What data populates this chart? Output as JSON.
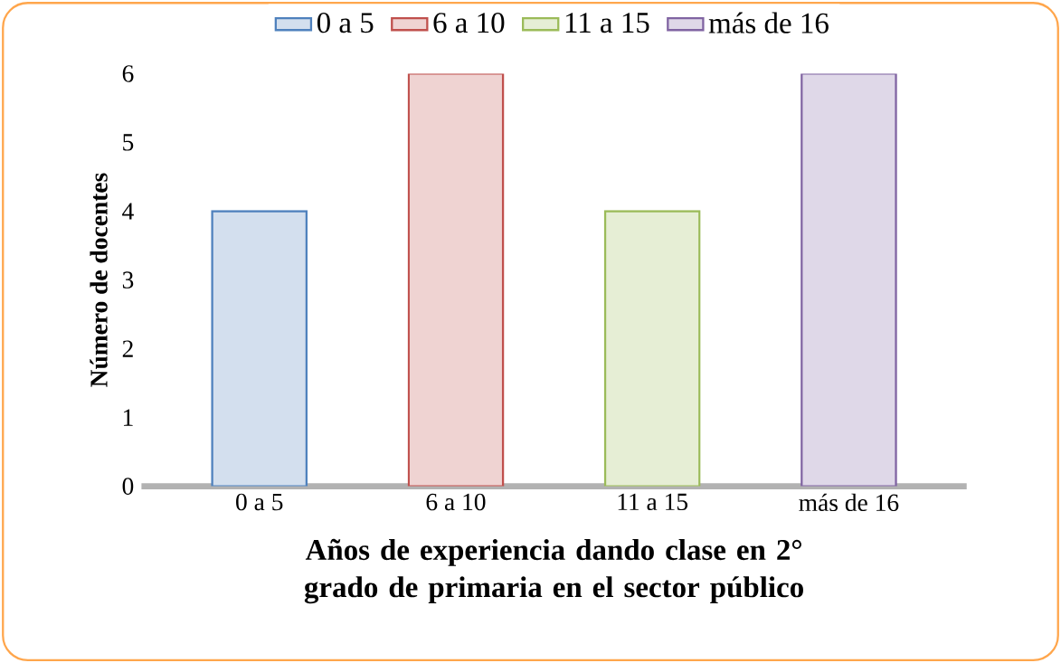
{
  "chart_data": {
    "type": "bar",
    "title": "Años de experiencia dando clase en 2° grado de primaria en el sector público",
    "ylabel": "Número de docentes",
    "categories": [
      "0 a 5",
      "6 a 10",
      "11 a 15",
      "más de 16"
    ],
    "series": [
      {
        "name": "0 a 5",
        "color": "#4f81bd",
        "values": [
          4,
          null,
          null,
          null
        ]
      },
      {
        "name": "6 a 10",
        "color": "#c0504d",
        "values": [
          null,
          6,
          null,
          null
        ]
      },
      {
        "name": "11 a 15",
        "color": "#9bbb59",
        "values": [
          null,
          null,
          4,
          null
        ]
      },
      {
        "name": "más de 16",
        "color": "#8064a2",
        "values": [
          null,
          null,
          null,
          6
        ]
      }
    ],
    "ylim": [
      0,
      6
    ],
    "yticks": [
      0,
      1,
      2,
      3,
      4,
      5,
      6
    ],
    "legend": "top"
  }
}
